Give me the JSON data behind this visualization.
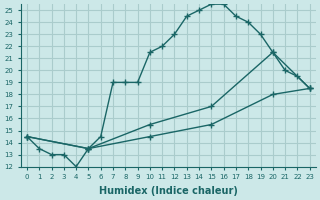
{
  "xlabel": "Humidex (Indice chaleur)",
  "ylabel": "",
  "bg_color": "#cce8e8",
  "grid_color": "#aacccc",
  "line_color": "#1a6666",
  "xlim": [
    -0.5,
    23.5
  ],
  "ylim": [
    12,
    25.5
  ],
  "xticks": [
    0,
    1,
    2,
    3,
    4,
    5,
    6,
    7,
    8,
    9,
    10,
    11,
    12,
    13,
    14,
    15,
    16,
    17,
    18,
    19,
    20,
    21,
    22,
    23
  ],
  "yticks": [
    12,
    13,
    14,
    15,
    16,
    17,
    18,
    19,
    20,
    21,
    22,
    23,
    24,
    25
  ],
  "xlabels": [
    "0",
    "1",
    "2",
    "3",
    "4",
    "5",
    "6",
    "7",
    "8",
    "9",
    "10",
    "11",
    "12",
    "13",
    "14",
    "15",
    "16",
    "17",
    "18",
    "19",
    "20",
    "21",
    "22",
    "23"
  ],
  "series1_x": [
    0,
    1,
    2,
    3,
    4,
    5,
    6,
    7,
    8,
    9,
    10,
    11,
    12,
    13,
    14,
    15,
    16,
    17,
    18,
    19,
    20,
    21,
    22,
    23
  ],
  "series1_y": [
    14.5,
    13.5,
    13,
    13,
    12,
    13.5,
    14.5,
    19,
    19,
    19,
    21.5,
    22,
    23,
    24.5,
    25,
    25.5,
    25.5,
    24.5,
    24,
    23,
    21.5,
    20,
    19.5,
    18.5
  ],
  "series2_x": [
    0,
    5,
    10,
    15,
    20,
    23
  ],
  "series2_y": [
    14.5,
    13.5,
    15.5,
    17,
    21.5,
    18.5
  ],
  "series3_x": [
    0,
    5,
    10,
    15,
    20,
    23
  ],
  "series3_y": [
    14.5,
    13.5,
    14.5,
    15.5,
    18,
    18.5
  ]
}
